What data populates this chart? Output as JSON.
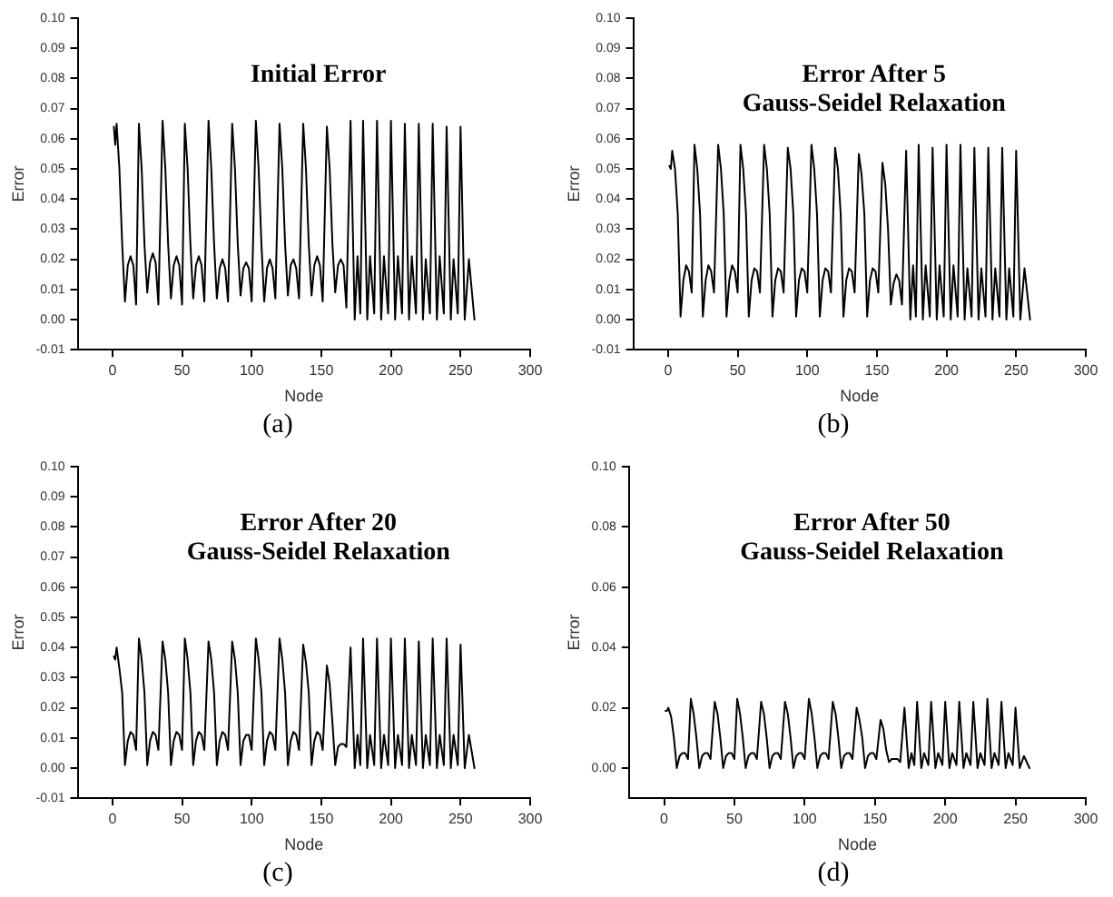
{
  "chart_data": [
    {
      "type": "line",
      "title": "Initial Error",
      "xlabel": "Node",
      "ylabel": "Error",
      "annotations": [
        "(a)"
      ],
      "xlim": [
        -25,
        300
      ],
      "xticks": [
        0,
        50,
        100,
        150,
        200,
        250,
        300
      ],
      "ylim": [
        -0.01,
        0.1
      ],
      "yticks": [
        {
          "value": -0.01,
          "label": "-0.01"
        },
        {
          "value": 0,
          "label": "0.00"
        },
        {
          "value": 0.01,
          "label": "0.01"
        },
        {
          "value": 0.02,
          "label": "0.02"
        },
        {
          "value": 0.03,
          "label": "0.03"
        },
        {
          "value": 0.04,
          "label": "0.04"
        },
        {
          "value": 0.05,
          "label": "0.05"
        },
        {
          "value": 0.06,
          "label": "0.06"
        },
        {
          "value": 0.07,
          "label": "0.07"
        },
        {
          "value": 0.08,
          "label": "0.08"
        },
        {
          "value": 0.09,
          "label": "0.09"
        },
        {
          "value": 0.1,
          "label": "0.10"
        }
      ],
      "x": [
        1,
        2,
        3,
        5,
        7,
        9,
        11,
        13,
        15,
        17,
        19,
        21,
        23,
        25,
        27,
        29,
        31,
        33,
        36,
        38,
        40,
        42,
        44,
        46,
        48,
        50,
        52,
        54,
        56,
        58,
        60,
        62,
        64,
        66,
        69,
        71,
        73,
        75,
        77,
        79,
        81,
        83,
        86,
        88,
        90,
        92,
        94,
        96,
        98,
        100,
        103,
        105,
        107,
        109,
        111,
        113,
        115,
        117,
        120,
        122,
        124,
        126,
        128,
        130,
        132,
        134,
        137,
        139,
        141,
        143,
        145,
        147,
        149,
        151,
        154,
        156,
        158,
        160,
        162,
        164,
        166,
        168,
        171,
        174,
        176,
        178,
        180,
        183,
        185,
        188,
        190,
        193,
        195,
        198,
        200,
        203,
        205,
        208,
        210,
        213,
        215,
        218,
        220,
        223,
        225,
        228,
        230,
        233,
        235,
        238,
        240,
        243,
        245,
        248,
        250,
        253,
        256,
        260
      ],
      "series": [
        {
          "color": "#000000",
          "values": [
            0.064,
            0.058,
            0.065,
            0.05,
            0.025,
            0.006,
            0.018,
            0.021,
            0.018,
            0.005,
            0.065,
            0.05,
            0.025,
            0.009,
            0.019,
            0.022,
            0.019,
            0.005,
            0.066,
            0.05,
            0.025,
            0.007,
            0.018,
            0.021,
            0.018,
            0.005,
            0.065,
            0.05,
            0.025,
            0.007,
            0.018,
            0.021,
            0.018,
            0.006,
            0.066,
            0.05,
            0.025,
            0.007,
            0.017,
            0.02,
            0.017,
            0.006,
            0.065,
            0.05,
            0.025,
            0.008,
            0.017,
            0.019,
            0.017,
            0.006,
            0.066,
            0.05,
            0.025,
            0.006,
            0.017,
            0.02,
            0.017,
            0.007,
            0.065,
            0.05,
            0.025,
            0.008,
            0.018,
            0.02,
            0.017,
            0.007,
            0.065,
            0.05,
            0.025,
            0.008,
            0.018,
            0.021,
            0.018,
            0.006,
            0.064,
            0.05,
            0.025,
            0.009,
            0.018,
            0.02,
            0.018,
            0.004,
            0.066,
            0,
            0.021,
            0.002,
            0.066,
            0,
            0.021,
            0.002,
            0.066,
            0,
            0.021,
            0.002,
            0.066,
            0,
            0.021,
            0.002,
            0.065,
            0,
            0.021,
            0.002,
            0.065,
            0,
            0.02,
            0.002,
            0.065,
            0,
            0.021,
            0.002,
            0.064,
            0,
            0.02,
            0.002,
            0.064,
            0,
            0.02,
            0
          ]
        }
      ]
    },
    {
      "type": "line",
      "title": "Error After 5\nGauss-Seidel Relaxation",
      "xlabel": "Node",
      "ylabel": "Error",
      "annotations": [
        "(b)"
      ],
      "xlim": [
        -25,
        300
      ],
      "xticks": [
        0,
        50,
        100,
        150,
        200,
        250,
        300
      ],
      "ylim": [
        -0.01,
        0.1
      ],
      "yticks": [
        {
          "value": -0.01,
          "label": "-0.01"
        },
        {
          "value": 0,
          "label": "0.00"
        },
        {
          "value": 0.01,
          "label": "0.01"
        },
        {
          "value": 0.02,
          "label": "0.02"
        },
        {
          "value": 0.03,
          "label": "0.03"
        },
        {
          "value": 0.04,
          "label": "0.04"
        },
        {
          "value": 0.05,
          "label": "0.05"
        },
        {
          "value": 0.06,
          "label": "0.06"
        },
        {
          "value": 0.07,
          "label": "0.07"
        },
        {
          "value": 0.08,
          "label": "0.08"
        },
        {
          "value": 0.09,
          "label": "0.09"
        },
        {
          "value": 0.1,
          "label": "0.10"
        }
      ],
      "x": [
        1,
        2,
        3,
        5,
        7,
        9,
        11,
        13,
        15,
        17,
        19,
        21,
        23,
        25,
        27,
        29,
        31,
        33,
        36,
        38,
        40,
        42,
        44,
        46,
        48,
        50,
        52,
        54,
        56,
        58,
        60,
        62,
        64,
        66,
        69,
        71,
        73,
        75,
        77,
        79,
        81,
        83,
        86,
        88,
        90,
        92,
        94,
        96,
        98,
        100,
        103,
        105,
        107,
        109,
        111,
        113,
        115,
        117,
        120,
        122,
        124,
        126,
        128,
        130,
        132,
        134,
        137,
        139,
        141,
        143,
        145,
        147,
        149,
        151,
        154,
        156,
        158,
        160,
        162,
        164,
        166,
        168,
        171,
        174,
        176,
        178,
        180,
        183,
        185,
        188,
        190,
        193,
        195,
        198,
        200,
        203,
        205,
        208,
        210,
        213,
        215,
        218,
        220,
        223,
        225,
        228,
        230,
        233,
        235,
        238,
        240,
        243,
        245,
        248,
        250,
        253,
        256,
        260
      ],
      "series": [
        {
          "color": "#000000",
          "values": [
            0.051,
            0.05,
            0.056,
            0.05,
            0.035,
            0.001,
            0.013,
            0.018,
            0.016,
            0.009,
            0.058,
            0.05,
            0.035,
            0.001,
            0.013,
            0.018,
            0.016,
            0.009,
            0.058,
            0.05,
            0.035,
            0.001,
            0.013,
            0.018,
            0.016,
            0.009,
            0.058,
            0.05,
            0.035,
            0.001,
            0.013,
            0.017,
            0.016,
            0.009,
            0.058,
            0.05,
            0.035,
            0.001,
            0.013,
            0.017,
            0.016,
            0.009,
            0.057,
            0.05,
            0.035,
            0.001,
            0.013,
            0.017,
            0.016,
            0.009,
            0.058,
            0.05,
            0.035,
            0.001,
            0.013,
            0.017,
            0.016,
            0.009,
            0.057,
            0.05,
            0.035,
            0.001,
            0.013,
            0.017,
            0.016,
            0.009,
            0.055,
            0.048,
            0.035,
            0.001,
            0.013,
            0.017,
            0.016,
            0.009,
            0.052,
            0.045,
            0.03,
            0.005,
            0.012,
            0.015,
            0.013,
            0.005,
            0.056,
            0,
            0.018,
            0.001,
            0.058,
            0,
            0.018,
            0.001,
            0.057,
            0,
            0.018,
            0.001,
            0.058,
            0,
            0.018,
            0.001,
            0.058,
            0,
            0.017,
            0.001,
            0.057,
            0,
            0.017,
            0.001,
            0.057,
            0,
            0.017,
            0.001,
            0.057,
            0,
            0.017,
            0.001,
            0.056,
            0,
            0.017,
            0
          ]
        }
      ]
    },
    {
      "type": "line",
      "title": "Error After 20\nGauss-Seidel Relaxation",
      "xlabel": "Node",
      "ylabel": "Error",
      "annotations": [
        "(c)"
      ],
      "xlim": [
        -25,
        300
      ],
      "xticks": [
        0,
        50,
        100,
        150,
        200,
        250,
        300
      ],
      "ylim": [
        -0.01,
        0.1
      ],
      "yticks": [
        {
          "value": -0.01,
          "label": "-0.01"
        },
        {
          "value": 0,
          "label": "0.00"
        },
        {
          "value": 0.01,
          "label": "0.01"
        },
        {
          "value": 0.02,
          "label": "0.02"
        },
        {
          "value": 0.03,
          "label": "0.03"
        },
        {
          "value": 0.04,
          "label": "0.04"
        },
        {
          "value": 0.05,
          "label": "0.05"
        },
        {
          "value": 0.06,
          "label": "0.06"
        },
        {
          "value": 0.07,
          "label": "0.07"
        },
        {
          "value": 0.08,
          "label": "0.08"
        },
        {
          "value": 0.09,
          "label": "0.09"
        },
        {
          "value": 0.1,
          "label": "0.10"
        }
      ],
      "x": [
        1,
        2,
        3,
        5,
        7,
        9,
        11,
        13,
        15,
        17,
        19,
        21,
        23,
        25,
        27,
        29,
        31,
        33,
        36,
        38,
        40,
        42,
        44,
        46,
        48,
        50,
        52,
        54,
        56,
        58,
        60,
        62,
        64,
        66,
        69,
        71,
        73,
        75,
        77,
        79,
        81,
        83,
        86,
        88,
        90,
        92,
        94,
        96,
        98,
        100,
        103,
        105,
        107,
        109,
        111,
        113,
        115,
        117,
        120,
        122,
        124,
        126,
        128,
        130,
        132,
        134,
        137,
        139,
        141,
        143,
        145,
        147,
        149,
        151,
        154,
        156,
        158,
        160,
        162,
        164,
        166,
        168,
        171,
        174,
        176,
        178,
        180,
        183,
        185,
        188,
        190,
        193,
        195,
        198,
        200,
        203,
        205,
        208,
        210,
        213,
        215,
        218,
        220,
        223,
        225,
        228,
        230,
        233,
        235,
        238,
        240,
        243,
        245,
        248,
        250,
        253,
        256,
        260
      ],
      "series": [
        {
          "color": "#000000",
          "values": [
            0.037,
            0.036,
            0.04,
            0.033,
            0.025,
            0.001,
            0.009,
            0.012,
            0.011,
            0.006,
            0.043,
            0.036,
            0.025,
            0.001,
            0.009,
            0.012,
            0.011,
            0.006,
            0.042,
            0.036,
            0.025,
            0.001,
            0.009,
            0.012,
            0.011,
            0.006,
            0.043,
            0.036,
            0.025,
            0.001,
            0.009,
            0.012,
            0.011,
            0.006,
            0.042,
            0.036,
            0.025,
            0.001,
            0.009,
            0.012,
            0.011,
            0.006,
            0.042,
            0.036,
            0.025,
            0.001,
            0.009,
            0.011,
            0.011,
            0.006,
            0.043,
            0.036,
            0.025,
            0.001,
            0.009,
            0.012,
            0.011,
            0.006,
            0.043,
            0.036,
            0.025,
            0.001,
            0.009,
            0.012,
            0.011,
            0.006,
            0.041,
            0.035,
            0.025,
            0.001,
            0.009,
            0.012,
            0.011,
            0.006,
            0.034,
            0.028,
            0.015,
            0.001,
            0.007,
            0.008,
            0.008,
            0.007,
            0.04,
            0,
            0.011,
            0.001,
            0.043,
            0,
            0.011,
            0.001,
            0.043,
            0,
            0.011,
            0.001,
            0.043,
            0,
            0.011,
            0.001,
            0.043,
            0,
            0.011,
            0.001,
            0.042,
            0,
            0.011,
            0.001,
            0.043,
            0,
            0.011,
            0.001,
            0.043,
            0,
            0.011,
            0.001,
            0.041,
            0,
            0.011,
            0
          ]
        }
      ]
    },
    {
      "type": "line",
      "title": "Error After 50\nGauss-Seidel Relaxation",
      "xlabel": "Node",
      "ylabel": "Error",
      "annotations": [
        "(d)"
      ],
      "xlim": [
        -25,
        300
      ],
      "xticks": [
        0,
        50,
        100,
        150,
        200,
        250,
        300
      ],
      "ylim": [
        -0.01,
        0.1
      ],
      "yticks": [
        {
          "value": 0,
          "label": "0.00"
        },
        {
          "value": 0.02,
          "label": "0.02"
        },
        {
          "value": 0.04,
          "label": "0.04"
        },
        {
          "value": 0.06,
          "label": "0.06"
        },
        {
          "value": 0.08,
          "label": "0.08"
        },
        {
          "value": 0.1,
          "label": "0.10"
        }
      ],
      "x": [
        1,
        2,
        3,
        5,
        7,
        9,
        11,
        13,
        15,
        17,
        19,
        21,
        23,
        25,
        27,
        29,
        31,
        33,
        36,
        38,
        40,
        42,
        44,
        46,
        48,
        50,
        52,
        54,
        56,
        58,
        60,
        62,
        64,
        66,
        69,
        71,
        73,
        75,
        77,
        79,
        81,
        83,
        86,
        88,
        90,
        92,
        94,
        96,
        98,
        100,
        103,
        105,
        107,
        109,
        111,
        113,
        115,
        117,
        120,
        122,
        124,
        126,
        128,
        130,
        132,
        134,
        137,
        139,
        141,
        143,
        145,
        147,
        149,
        151,
        154,
        156,
        158,
        160,
        162,
        164,
        166,
        168,
        171,
        174,
        176,
        178,
        180,
        183,
        185,
        188,
        190,
        193,
        195,
        198,
        200,
        203,
        205,
        208,
        210,
        213,
        215,
        218,
        220,
        223,
        225,
        228,
        230,
        233,
        235,
        238,
        240,
        243,
        245,
        248,
        250,
        253,
        256,
        260
      ],
      "series": [
        {
          "color": "#000000",
          "values": [
            0.019,
            0.019,
            0.02,
            0.017,
            0.01,
            0,
            0.004,
            0.005,
            0.005,
            0.003,
            0.023,
            0.018,
            0.01,
            0,
            0.004,
            0.005,
            0.005,
            0.003,
            0.022,
            0.018,
            0.01,
            0,
            0.004,
            0.005,
            0.005,
            0.003,
            0.023,
            0.018,
            0.01,
            0,
            0.004,
            0.005,
            0.005,
            0.003,
            0.022,
            0.018,
            0.01,
            0,
            0.004,
            0.005,
            0.005,
            0.003,
            0.022,
            0.018,
            0.01,
            0,
            0.004,
            0.005,
            0.005,
            0.003,
            0.023,
            0.018,
            0.01,
            0,
            0.004,
            0.005,
            0.005,
            0.003,
            0.022,
            0.018,
            0.01,
            0,
            0.004,
            0.005,
            0.005,
            0.003,
            0.02,
            0.016,
            0.01,
            0,
            0.004,
            0.005,
            0.005,
            0.003,
            0.016,
            0.013,
            0.006,
            0.002,
            0.003,
            0.003,
            0.003,
            0.002,
            0.02,
            0,
            0.005,
            0.001,
            0.022,
            0,
            0.005,
            0.001,
            0.022,
            0,
            0.005,
            0.001,
            0.022,
            0,
            0.005,
            0.001,
            0.022,
            0,
            0.005,
            0.001,
            0.022,
            0,
            0.005,
            0.001,
            0.023,
            0,
            0.005,
            0.001,
            0.022,
            0,
            0.005,
            0.001,
            0.02,
            0,
            0.004,
            0
          ]
        }
      ]
    }
  ]
}
